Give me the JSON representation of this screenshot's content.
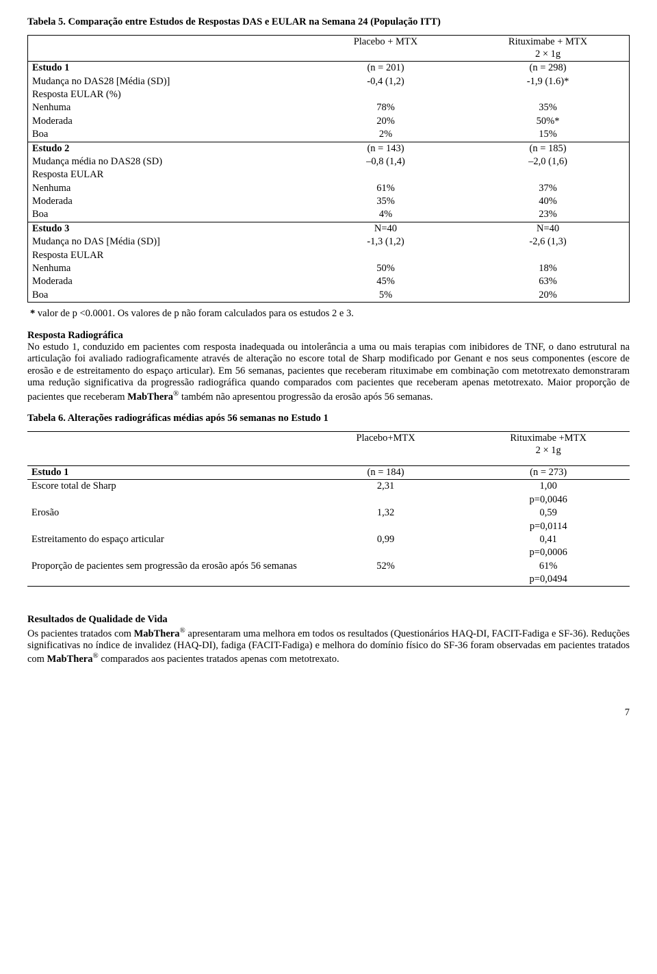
{
  "table5": {
    "title": "Tabela 5. Comparação entre Estudos de Respostas DAS e EULAR na Semana 24 (População ITT)",
    "col1_header_line1": "Placebo + MTX",
    "col2_header_line1": "Rituximabe + MTX",
    "col2_header_line2": "2 × 1g",
    "rows": [
      {
        "label": "Estudo 1",
        "c1": "(n = 201)",
        "c2": "(n = 298)",
        "bold": true,
        "sep": false
      },
      {
        "label": "Mudança no DAS28 [Média (SD)]",
        "c1": "-0,4 (1,2)",
        "c2": "-1,9 (1.6)*",
        "bold": false,
        "sep": false
      },
      {
        "label": "Resposta EULAR (%)",
        "c1": "",
        "c2": "",
        "bold": false,
        "sep": false
      },
      {
        "label": "Nenhuma",
        "c1": "78%",
        "c2": "35%",
        "bold": false,
        "sep": false
      },
      {
        "label": "Moderada",
        "c1": "20%",
        "c2": "50%*",
        "bold": false,
        "sep": false
      },
      {
        "label": "Boa",
        "c1": "2%",
        "c2": "15%",
        "bold": false,
        "sep": false
      },
      {
        "label": "Estudo 2",
        "c1": "(n = 143)",
        "c2": "(n = 185)",
        "bold": true,
        "sep": true
      },
      {
        "label": "Mudança média no DAS28 (SD)",
        "c1": "–0,8 (1,4)",
        "c2": "–2,0 (1,6)",
        "bold": false,
        "sep": false
      },
      {
        "label": "Resposta EULAR",
        "c1": "",
        "c2": "",
        "bold": false,
        "sep": false
      },
      {
        "label": "Nenhuma",
        "c1": "61%",
        "c2": "37%",
        "bold": false,
        "sep": false
      },
      {
        "label": "Moderada",
        "c1": "35%",
        "c2": "40%",
        "bold": false,
        "sep": false
      },
      {
        "label": "Boa",
        "c1": "4%",
        "c2": "23%",
        "bold": false,
        "sep": false
      },
      {
        "label": "Estudo 3",
        "c1": "N=40",
        "c2": "N=40",
        "bold": true,
        "sep": true
      },
      {
        "label": "Mudança no DAS [Média (SD)]",
        "c1": "-1,3 (1,2)",
        "c2": "-2,6 (1,3)",
        "bold": false,
        "sep": false
      },
      {
        "label": "Resposta EULAR",
        "c1": "",
        "c2": "",
        "bold": false,
        "sep": false
      },
      {
        "label": "Nenhuma",
        "c1": "50%",
        "c2": "18%",
        "bold": false,
        "sep": false
      },
      {
        "label": "Moderada",
        "c1": "45%",
        "c2": "63%",
        "bold": false,
        "sep": false
      },
      {
        "label": "Boa",
        "c1": "5%",
        "c2": "20%",
        "bold": false,
        "sep": false
      }
    ],
    "footnote_bold": "*",
    "footnote_text": " valor de p <0.0001. Os valores de p não foram calculados para os estudos 2 e 3."
  },
  "radiographic": {
    "heading": "Resposta Radiográfica",
    "text": "No estudo 1, conduzido em pacientes com resposta inadequada ou intolerância a uma ou mais terapias com inibidores de TNF, o dano estrutural na articulação foi avaliado radiograficamente através de alteração no escore total de Sharp modificado por Genant e nos seus componentes (escore de erosão e de estreitamento do espaço articular). Em 56 semanas, pacientes que receberam rituximabe  em combinação com metotrexato demonstraram uma redução significativa da progressão radiográfica quando comparados com pacientes que receberam apenas metotrexato. Maior proporção de pacientes que receberam ",
    "brand": "MabThera",
    "reg": "®",
    "text_after": " também não apresentou progressão da erosão após 56 semanas."
  },
  "table6": {
    "title": "Tabela 6. Alterações radiográficas médias após 56 semanas no Estudo 1",
    "col1_header": "Placebo+MTX",
    "col2_header_line1": "Rituximabe +MTX",
    "col2_header_line2": "2 × 1g",
    "study_label": "Estudo 1",
    "study_c1": "(n = 184)",
    "study_c2": "(n = 273)",
    "rows": [
      {
        "label": "Escore total de Sharp",
        "c1": "2,31",
        "c2": "1,00",
        "p": "p=0,0046"
      },
      {
        "label": "Erosão",
        "c1": "1,32",
        "c2": "0,59",
        "p": "p=0,0114"
      },
      {
        "label": "Estreitamento do espaço articular",
        "c1": "0,99",
        "c2": "0,41",
        "p": "p=0,0006"
      },
      {
        "label": "Proporção de pacientes sem progressão da erosão após 56 semanas",
        "c1": "52%",
        "c2": "61%",
        "p": "p=0,0494"
      }
    ]
  },
  "quality": {
    "heading": "Resultados de Qualidade de Vida",
    "text1": "Os pacientes tratados com ",
    "brand": "MabThera",
    "reg": "®",
    "text2": " apresentaram uma melhora em todos os resultados (Questionários HAQ-DI, FACIT-Fadiga e SF-36). Reduções significativas no índice de invalidez (HAQ-DI), fadiga (FACIT-Fadiga) e melhora do domínio físico do SF-36 foram observadas em pacientes tratados com ",
    "text3": " comparados aos pacientes tratados apenas com metotrexato."
  },
  "page_number": "7"
}
